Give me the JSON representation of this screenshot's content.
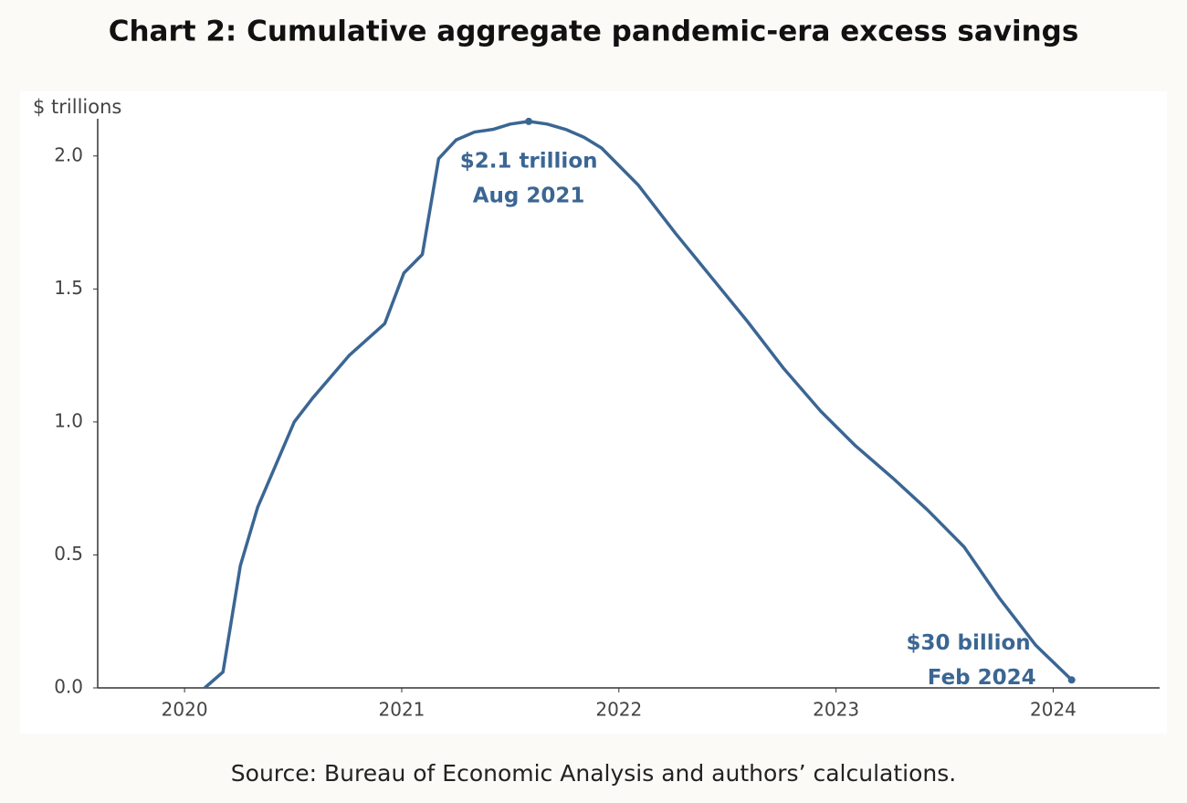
{
  "chart_data": {
    "type": "line",
    "title": "Chart 2: Cumulative aggregate pandemic-era excess savings",
    "y_label": "$ trillions",
    "source": "Source: Bureau of Economic Analysis and authors’ calculations.",
    "annotations": [
      "$2.1 trillion",
      "Aug 2021",
      "$30 billion",
      "Feb 2024"
    ],
    "xlim": [
      2019.6,
      2024.49
    ],
    "ylim": [
      0,
      2.14
    ],
    "xticks": [
      2020,
      2021,
      2022,
      2023,
      2024
    ],
    "yticks": [
      {
        "value": 0,
        "label": "0.0"
      },
      0.5,
      {
        "value": 1,
        "label": "1.0"
      },
      1.5,
      {
        "value": 2,
        "label": "2.0"
      }
    ],
    "grid": false,
    "series": [
      {
        "color": "#3b6693",
        "x": [
          2020.093,
          2020.177,
          2020.257,
          2020.337,
          2020.505,
          2020.59,
          2020.758,
          2020.922,
          2021.01,
          2021.095,
          2021.17,
          2021.25,
          2021.335,
          2021.42,
          2021.5,
          2021.585,
          2021.67,
          2021.755,
          2021.84,
          2021.92,
          2022.09,
          2022.26,
          2022.43,
          2022.59,
          2022.76,
          2022.93,
          2023.09,
          2023.26,
          2023.42,
          2023.59,
          2023.75,
          2023.92,
          2024.085
        ],
        "values": [
          0,
          0.06,
          0.46,
          0.68,
          1.0,
          1.09,
          1.25,
          1.37,
          1.56,
          1.63,
          1.99,
          2.06,
          2.09,
          2.1,
          2.12,
          2.13,
          2.12,
          2.1,
          2.07,
          2.03,
          1.89,
          1.71,
          1.54,
          1.38,
          1.2,
          1.04,
          0.91,
          0.79,
          0.67,
          0.53,
          0.34,
          0.16,
          0.03
        ]
      }
    ]
  }
}
